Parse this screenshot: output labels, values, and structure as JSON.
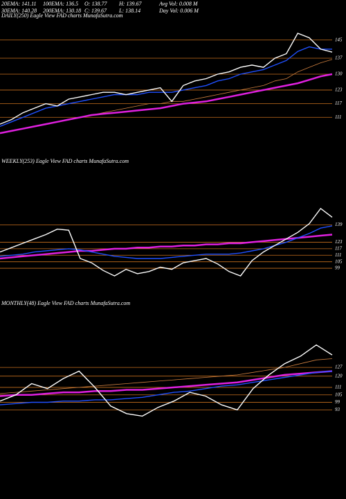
{
  "header": {
    "rows": [
      [
        "20EMA: 141.11",
        "100EMA: 136.5",
        "O: 138.77",
        "H: 139.67",
        "Avg Vol: 0.008 M"
      ],
      [
        "30EMA: 140.28",
        "200EMA: 130.18",
        "C: 139.67",
        "L: 138.14",
        "Day Vol: 0.006  M"
      ]
    ]
  },
  "chart_data": [
    {
      "type": "line",
      "title": "DAILY(250) Eagle  View  FAD charts MunafaSutra.com",
      "ylim": [
        94,
        155
      ],
      "yticks": [
        145,
        137,
        130,
        123,
        117,
        111
      ],
      "grid": true,
      "grid_color": "#c8701e",
      "series": [
        {
          "color": "#d08040",
          "values": [
            104,
            105,
            106,
            107,
            108,
            109,
            110,
            111,
            112,
            113,
            114,
            115,
            116,
            117,
            117,
            118,
            118,
            119,
            120,
            121,
            122,
            123,
            124,
            125,
            127,
            128,
            131,
            133,
            135,
            136.5
          ]
        },
        {
          "color": "#e020e0",
          "values": [
            104,
            105,
            106,
            107,
            108,
            109,
            110,
            111,
            112,
            112.5,
            113,
            113.5,
            114,
            114.5,
            115,
            116,
            117,
            117.5,
            118,
            119,
            120,
            121,
            122,
            123,
            124,
            125,
            126,
            127.5,
            129,
            130
          ]
        },
        {
          "color": "#2050ff",
          "values": [
            107,
            109,
            111,
            113,
            115,
            116,
            117,
            118,
            119,
            120,
            121,
            121,
            121,
            122,
            122,
            122,
            123,
            124,
            125,
            127,
            128,
            130,
            131,
            132,
            134,
            136,
            140,
            142,
            141,
            141
          ]
        },
        {
          "color": "#ffffff",
          "values": [
            108,
            110,
            113,
            115,
            117,
            116,
            119,
            120,
            121,
            122,
            122,
            121,
            122,
            123,
            124,
            118,
            125,
            127,
            128,
            130,
            131,
            133,
            134,
            133,
            137,
            139,
            148,
            146,
            141,
            139.7
          ]
        }
      ]
    },
    {
      "type": "line",
      "title": "WEEKLY(253) Eagle  View  FAD charts MunafaSutra.com",
      "ylim": [
        78,
        196
      ],
      "yticks": [
        139,
        123,
        117,
        111,
        105,
        99
      ],
      "grid": true,
      "grid_color": "#c8701e",
      "series": [
        {
          "color": "#e020e0",
          "values": [
            108,
            109,
            110,
            111,
            112,
            113,
            114,
            115,
            115,
            116,
            117,
            117,
            118,
            118,
            119,
            119,
            120,
            120,
            121,
            121,
            122,
            122,
            123,
            124,
            125,
            126,
            127,
            128,
            129,
            130
          ]
        },
        {
          "color": "#2050ff",
          "values": [
            110,
            111,
            112,
            114,
            115,
            116,
            117,
            116,
            114,
            112,
            110,
            109,
            108,
            108,
            108,
            109,
            110,
            111,
            112,
            112,
            112,
            113,
            115,
            117,
            120,
            123,
            127,
            131,
            136,
            138
          ]
        },
        {
          "color": "#ffffff",
          "values": [
            114,
            118,
            122,
            126,
            130,
            135,
            134,
            108,
            104,
            97,
            92,
            98,
            94,
            96,
            100,
            98,
            104,
            106,
            108,
            103,
            96,
            92,
            106,
            114,
            120,
            126,
            132,
            140,
            154,
            146
          ]
        }
      ]
    },
    {
      "type": "line",
      "title": "MONTHLY(48) Eagle  View  FAD charts MunafaSutra.com",
      "ylim": [
        66,
        177
      ],
      "yticks": [
        127,
        120,
        111,
        105,
        99,
        93
      ],
      "grid": true,
      "grid_color": "#c8701e",
      "series": [
        {
          "color": "#d08040",
          "values": [
            106,
            107,
            108,
            109,
            110,
            111,
            112,
            113,
            114,
            115,
            116,
            117,
            118,
            119,
            120,
            121,
            123,
            125,
            127,
            130,
            133,
            134
          ]
        },
        {
          "color": "#e020e0",
          "values": [
            104,
            105,
            105,
            106,
            107,
            107,
            108,
            108,
            109,
            109,
            110,
            111,
            112,
            113,
            114,
            115,
            117,
            119,
            121,
            122,
            123,
            124
          ]
        },
        {
          "color": "#2050ff",
          "values": [
            97,
            98,
            99,
            99,
            100,
            100,
            101,
            101,
            102,
            103,
            105,
            107,
            108,
            110,
            112,
            113,
            115,
            117,
            119,
            121,
            123,
            124
          ]
        },
        {
          "color": "#ffffff",
          "values": [
            100,
            105,
            114,
            110,
            118,
            124,
            111,
            96,
            90,
            88,
            95,
            100,
            107,
            104,
            97,
            93,
            110,
            121,
            130,
            136,
            145,
            137
          ]
        }
      ]
    }
  ]
}
